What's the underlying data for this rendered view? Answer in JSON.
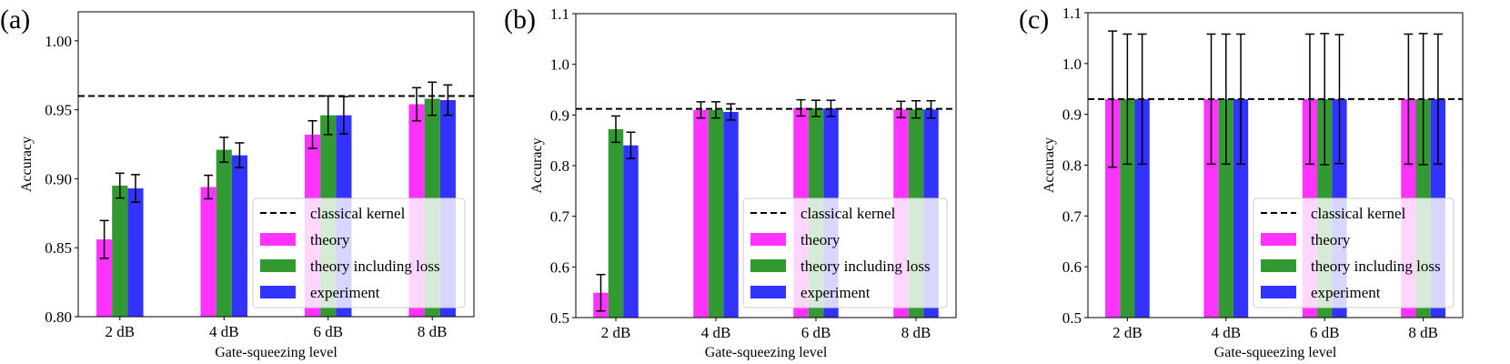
{
  "colors": {
    "theory": "#ff33ff",
    "theory_loss": "#339933",
    "experiment": "#3333ff",
    "classical": "#000000"
  },
  "chart_data": [
    {
      "type": "bar",
      "panel_label": "(a)",
      "xlabel": "Gate-squeezing level",
      "ylabel": "Accuracy",
      "categories": [
        "2 dB",
        "4 dB",
        "6 dB",
        "8 dB"
      ],
      "ylim": [
        0.8,
        1.021
      ],
      "yticks": [
        0.8,
        0.85,
        0.9,
        0.95,
        1.0
      ],
      "ytick_labels": [
        "0.80",
        "0.85",
        "0.90",
        "0.95",
        "1.00"
      ],
      "classical_kernel": 0.96,
      "series": [
        {
          "name": "theory",
          "values": [
            0.856,
            0.894,
            0.932,
            0.954
          ],
          "errors": [
            0.0137,
            0.0085,
            0.01,
            0.012
          ]
        },
        {
          "name": "theory including loss",
          "values": [
            0.895,
            0.921,
            0.946,
            0.958
          ],
          "errors": [
            0.009,
            0.009,
            0.014,
            0.012
          ]
        },
        {
          "name": "experiment",
          "values": [
            0.893,
            0.917,
            0.946,
            0.957
          ],
          "errors": [
            0.01,
            0.009,
            0.0135,
            0.011
          ]
        }
      ],
      "legend": [
        "classical kernel",
        "theory",
        "theory including loss",
        "experiment"
      ],
      "legend_position": "lower-right"
    },
    {
      "type": "bar",
      "panel_label": "(b)",
      "xlabel": "Gate-squeezing level",
      "ylabel": "Accuracy",
      "categories": [
        "2 dB",
        "4 dB",
        "6 dB",
        "8 dB"
      ],
      "ylim": [
        0.5,
        1.1
      ],
      "yticks": [
        0.5,
        0.6,
        0.7,
        0.8,
        0.9,
        1.0,
        1.1
      ],
      "ytick_labels": [
        "0.5",
        "0.6",
        "0.7",
        "0.8",
        "0.9",
        "1.0",
        "1.1"
      ],
      "classical_kernel": 0.912,
      "series": [
        {
          "name": "theory",
          "values": [
            0.549,
            0.91,
            0.914,
            0.911
          ],
          "errors": [
            0.036,
            0.016,
            0.016,
            0.016
          ]
        },
        {
          "name": "theory including loss",
          "values": [
            0.872,
            0.91,
            0.913,
            0.911
          ],
          "errors": [
            0.026,
            0.016,
            0.016,
            0.017
          ]
        },
        {
          "name": "experiment",
          "values": [
            0.84,
            0.906,
            0.913,
            0.911
          ],
          "errors": [
            0.026,
            0.016,
            0.016,
            0.017
          ]
        }
      ],
      "legend": [
        "classical kernel",
        "theory",
        "theory including loss",
        "experiment"
      ],
      "legend_position": "lower-right"
    },
    {
      "type": "bar",
      "panel_label": "(c)",
      "xlabel": "Gate-squeezing level",
      "ylabel": "Accuracy",
      "categories": [
        "2 dB",
        "4 dB",
        "6 dB",
        "8 dB"
      ],
      "ylim": [
        0.5,
        1.1
      ],
      "yticks": [
        0.5,
        0.6,
        0.7,
        0.8,
        0.9,
        1.0,
        1.1
      ],
      "ytick_labels": [
        "0.5",
        "0.6",
        "0.7",
        "0.8",
        "0.9",
        "1.0",
        "1.1"
      ],
      "classical_kernel": 0.93,
      "series": [
        {
          "name": "theory",
          "values": [
            0.93,
            0.93,
            0.93,
            0.93
          ],
          "errors": [
            0.134,
            0.128,
            0.128,
            0.128
          ]
        },
        {
          "name": "theory including loss",
          "values": [
            0.93,
            0.93,
            0.93,
            0.93
          ],
          "errors": [
            0.128,
            0.128,
            0.129,
            0.129
          ]
        },
        {
          "name": "experiment",
          "values": [
            0.93,
            0.93,
            0.93,
            0.93
          ],
          "errors": [
            0.128,
            0.128,
            0.127,
            0.128
          ]
        }
      ],
      "legend": [
        "classical kernel",
        "theory",
        "theory including loss",
        "experiment"
      ],
      "legend_position": "lower-right"
    }
  ]
}
